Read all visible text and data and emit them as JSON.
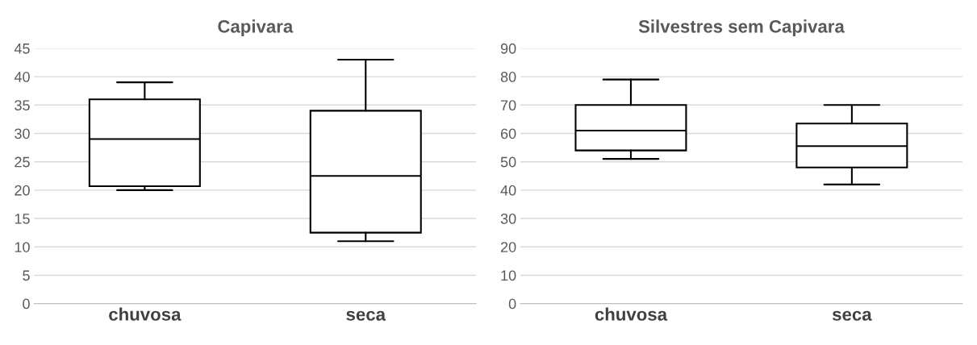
{
  "chart_data": [
    {
      "type": "box",
      "title": "Capivara",
      "categories": [
        "chuvosa",
        "seca"
      ],
      "boxes": [
        {
          "low": 20,
          "q1": 20.7,
          "median": 29,
          "q3": 36,
          "high": 39
        },
        {
          "low": 11,
          "q1": 12.5,
          "median": 22.5,
          "q3": 34,
          "high": 43
        }
      ],
      "ylim": [
        0,
        45
      ],
      "yticks": [
        0,
        5,
        10,
        15,
        20,
        25,
        30,
        35,
        40,
        45
      ],
      "grid": "y"
    },
    {
      "type": "box",
      "title": "Silvestres sem Capivara",
      "categories": [
        "chuvosa",
        "seca"
      ],
      "boxes": [
        {
          "low": 51,
          "q1": 54,
          "median": 61,
          "q3": 70,
          "high": 79
        },
        {
          "low": 42,
          "q1": 48,
          "median": 55.5,
          "q3": 63.5,
          "high": 70
        }
      ],
      "ylim": [
        0,
        90
      ],
      "yticks": [
        0,
        10,
        20,
        30,
        40,
        50,
        60,
        70,
        80,
        90
      ],
      "grid": "y"
    }
  ]
}
